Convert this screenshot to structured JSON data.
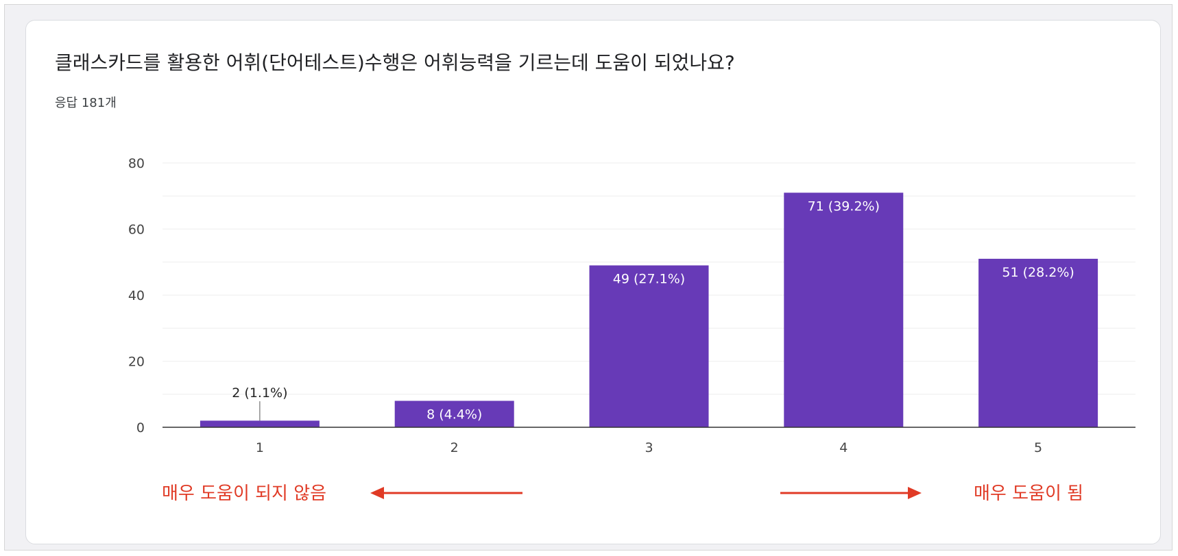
{
  "question": "클래스카드를 활용한 어휘(단어테스트)수행은 어휘능력을 기르는데 도움이 되었나요?",
  "response_count": "응답 181개",
  "scale": {
    "low_label": "매우 도움이 되지 않음",
    "high_label": "매우 도움이 됨"
  },
  "colors": {
    "bar": "#673ab7",
    "arrow": "#e03a25",
    "grid": "#eeeeee"
  },
  "chart_data": {
    "type": "bar",
    "categories": [
      "1",
      "2",
      "3",
      "4",
      "5"
    ],
    "values": [
      2,
      8,
      49,
      71,
      51
    ],
    "data_labels": [
      "2 (1.1%)",
      "8 (4.4%)",
      "49 (27.1%)",
      "71 (39.2%)",
      "51 (28.2%)"
    ],
    "y_ticks": [
      "0",
      "20",
      "40",
      "60",
      "80"
    ],
    "ylim": [
      0,
      80
    ],
    "grid": true,
    "legend": "none"
  }
}
